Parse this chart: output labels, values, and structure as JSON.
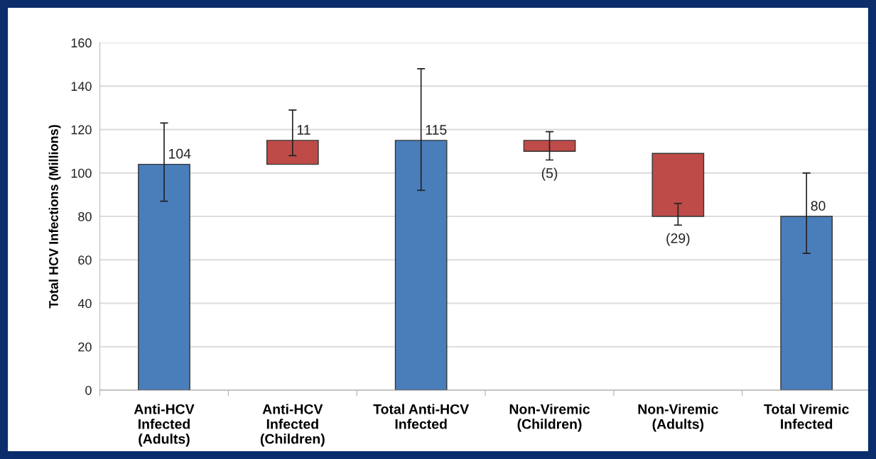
{
  "chart_data": {
    "type": "bar",
    "ylabel": "Total HCV Infections (Millions)",
    "categories": [
      "Anti-HCV\nInfected\n(Adults)",
      "Anti-HCV\nInfected\n(Children)",
      "Total Anti-HCV\nInfected",
      "Non-Viremic\n(Children)",
      "Non-Viremic\n(Adults)",
      "Total Viremic\nInfected"
    ],
    "values": [
      104,
      11,
      115,
      -5,
      -29,
      80
    ],
    "base": [
      0,
      104,
      0,
      115,
      109,
      0
    ],
    "colors": [
      "#4a7ebb",
      "#be4b48",
      "#4a7ebb",
      "#be4b48",
      "#be4b48",
      "#4a7ebb"
    ],
    "errors": [
      [
        87,
        123
      ],
      [
        108,
        129
      ],
      [
        92,
        148
      ],
      [
        106,
        119
      ],
      [
        76,
        86
      ],
      [
        63,
        100
      ]
    ],
    "value_labels": [
      "104",
      "11",
      "115",
      "(5)",
      "(29)",
      "80"
    ],
    "ylim": [
      0,
      160
    ],
    "yticks": [
      0,
      20,
      40,
      60,
      80,
      100,
      120,
      140,
      160
    ],
    "grid": "y"
  }
}
